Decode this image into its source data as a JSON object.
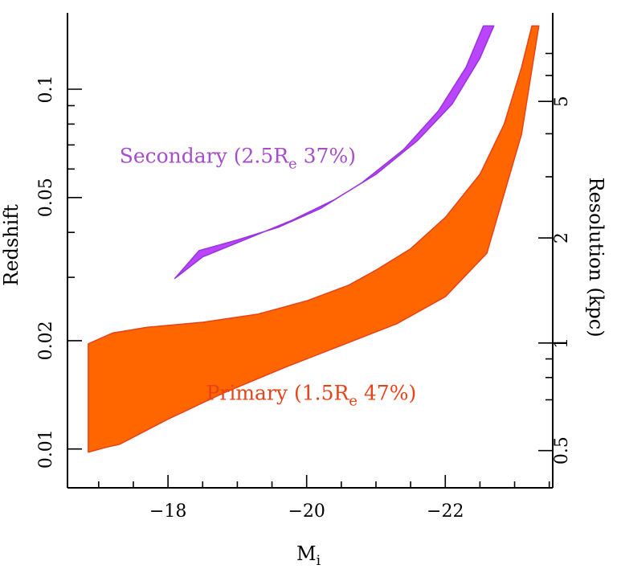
{
  "chart_data": {
    "type": "area",
    "xlabel": "M",
    "xlabel_sub": "i",
    "ylabel": "Redshift",
    "y2label": "Resolution (kpc)",
    "xlim": [
      -16.55,
      -23.55
    ],
    "ylim": [
      0.0078,
      0.163
    ],
    "y_scale": "log",
    "x_ticks": [
      {
        "value": -18,
        "label": "−18"
      },
      {
        "value": -20,
        "label": "−20"
      },
      {
        "value": -22,
        "label": "−22"
      }
    ],
    "x_minor_step": 0.5,
    "y_ticks": [
      {
        "value": 0.01,
        "label": "0.01"
      },
      {
        "value": 0.02,
        "label": "0.02"
      },
      {
        "value": 0.05,
        "label": "0.05"
      },
      {
        "value": 0.1,
        "label": "0.1"
      }
    ],
    "y_minor": [
      0.03,
      0.04,
      0.06,
      0.07,
      0.08,
      0.09
    ],
    "y2_ticks": [
      {
        "z": 0.0099,
        "label": "0.5"
      },
      {
        "z": 0.0197,
        "label": "1"
      },
      {
        "z": 0.0386,
        "label": "2"
      },
      {
        "z": 0.0925,
        "label": "5"
      }
    ],
    "y2_minor": [
      0.0137,
      0.0158,
      0.0178,
      0.0571,
      0.0752,
      0.1092,
      0.1257
    ],
    "series": [
      {
        "name": "Primary",
        "label_parts": [
          "Primary (1.5R",
          "e",
          " 47%)"
        ],
        "label_color": "#e84218",
        "fill": "#ff6600",
        "stroke": "#e84218",
        "label_at": {
          "x": -18.55,
          "y": 0.0137
        },
        "upper": [
          [
            -16.85,
            0.0196
          ],
          [
            -17.2,
            0.021
          ],
          [
            -17.7,
            0.0218
          ],
          [
            -18.5,
            0.0225
          ],
          [
            -19.3,
            0.0237
          ],
          [
            -20.0,
            0.0258
          ],
          [
            -20.6,
            0.0285
          ],
          [
            -21.0,
            0.0314
          ],
          [
            -21.5,
            0.036
          ],
          [
            -22.0,
            0.044
          ],
          [
            -22.5,
            0.058
          ],
          [
            -22.85,
            0.08
          ],
          [
            -23.1,
            0.115
          ],
          [
            -23.25,
            0.15
          ]
        ],
        "lower": [
          [
            -23.35,
            0.15
          ],
          [
            -23.1,
            0.075
          ],
          [
            -22.6,
            0.035
          ],
          [
            -22.0,
            0.0265
          ],
          [
            -21.3,
            0.0223
          ],
          [
            -20.5,
            0.0194
          ],
          [
            -19.7,
            0.0169
          ],
          [
            -18.8,
            0.0143
          ],
          [
            -18.0,
            0.0121
          ],
          [
            -17.3,
            0.0103
          ],
          [
            -17.1,
            0.0101
          ],
          [
            -16.85,
            0.0098
          ]
        ]
      },
      {
        "name": "Secondary",
        "label_parts": [
          "Secondary (2.5R",
          "e",
          " 37%)"
        ],
        "label_color": "#a64ccc",
        "fill": "#bb44ff",
        "stroke": "#9933dd",
        "label_at": {
          "x": -17.3,
          "y": 0.0625
        },
        "upper": [
          [
            -18.1,
            0.0298
          ],
          [
            -18.45,
            0.0356
          ],
          [
            -19.0,
            0.0381
          ],
          [
            -19.6,
            0.0414
          ],
          [
            -20.2,
            0.0466
          ],
          [
            -20.8,
            0.055
          ],
          [
            -21.4,
            0.068
          ],
          [
            -21.9,
            0.087
          ],
          [
            -22.3,
            0.115
          ],
          [
            -22.55,
            0.15
          ]
        ],
        "lower": [
          [
            -22.7,
            0.15
          ],
          [
            -22.5,
            0.122
          ],
          [
            -22.1,
            0.091
          ],
          [
            -21.6,
            0.072
          ],
          [
            -21.0,
            0.058
          ],
          [
            -20.4,
            0.0493
          ],
          [
            -19.8,
            0.0433
          ],
          [
            -19.1,
            0.0381
          ],
          [
            -18.5,
            0.0342
          ],
          [
            -18.1,
            0.0298
          ]
        ]
      }
    ],
    "grid": false,
    "legend": "none"
  }
}
